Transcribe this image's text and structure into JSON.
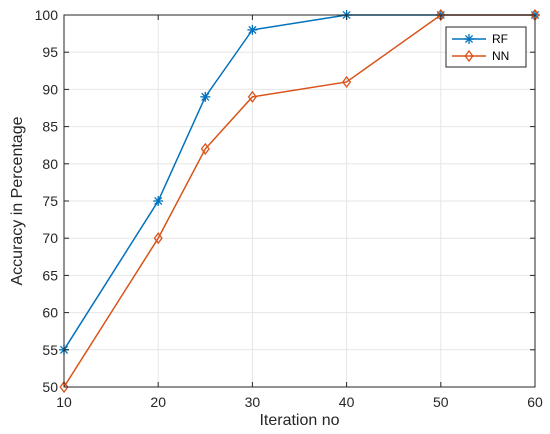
{
  "chart_data": {
    "type": "line",
    "title": "",
    "xlabel": "Iteration no",
    "ylabel": "Accuracy in Percentage",
    "xlim": [
      10,
      60
    ],
    "ylim": [
      50,
      100
    ],
    "xticks": [
      10,
      20,
      30,
      40,
      50,
      60
    ],
    "yticks": [
      50,
      55,
      60,
      65,
      70,
      75,
      80,
      85,
      90,
      95,
      100
    ],
    "grid": true,
    "legend_position": "top-right",
    "series": [
      {
        "name": "RF",
        "color": "#0072BD",
        "marker": "asterisk",
        "x": [
          10,
          20,
          25,
          30,
          40,
          50,
          60
        ],
        "y": [
          55,
          75,
          89,
          98,
          100,
          100,
          100
        ]
      },
      {
        "name": "NN",
        "color": "#D95319",
        "marker": "diamond",
        "x": [
          10,
          20,
          25,
          30,
          40,
          50,
          60
        ],
        "y": [
          50,
          70,
          82,
          89,
          91,
          100,
          100
        ]
      }
    ]
  }
}
